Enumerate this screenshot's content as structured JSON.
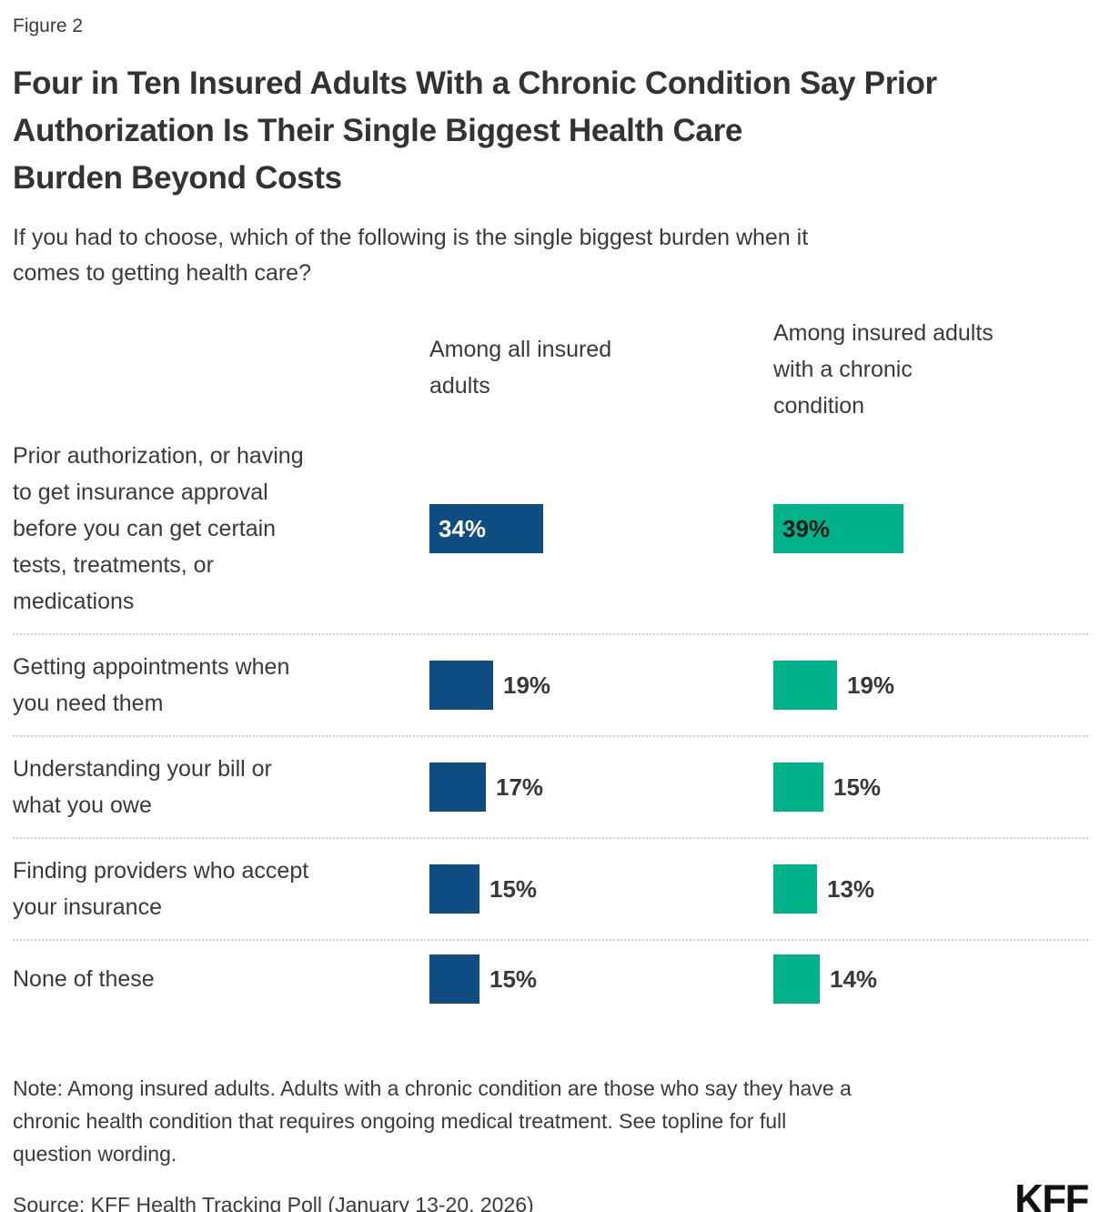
{
  "figure_label": "Figure 2",
  "title": "Four in Ten Insured Adults With a Chronic Condition Say Prior\nAuthorization Is Their Single Biggest Health Care\nBurden Beyond Costs",
  "subtitle": "If you had to choose, which of the following is the single biggest burden when it\ncomes to getting health care?",
  "columns": [
    {
      "label": "Among all insured\nadults"
    },
    {
      "label": "Among insured adults\nwith a chronic\ncondition"
    }
  ],
  "chart_data": {
    "type": "bar",
    "orientation": "horizontal",
    "title": "Four in Ten Insured Adults With a Chronic Condition Say Prior Authorization Is Their Single Biggest Health Care Burden Beyond Costs",
    "subtitle": "If you had to choose, which of the following is the single biggest burden when it comes to getting health care?",
    "categories": [
      "Prior authorization, or having\nto get insurance approval\nbefore you can get certain\ntests, treatments, or\nmedications",
      "Getting appointments when\nyou need them",
      "Understanding your bill or\nwhat you owe",
      "Finding providers who accept\nyour insurance",
      "None of these"
    ],
    "series": [
      {
        "name": "Among all insured adults",
        "color": "#0F4C81",
        "values": [
          34,
          19,
          17,
          15,
          15
        ]
      },
      {
        "name": "Among insured adults with a chronic condition",
        "color": "#00B289",
        "values": [
          39,
          19,
          15,
          13,
          14
        ]
      }
    ],
    "value_suffix": "%",
    "value_labels": true,
    "inside_label_threshold": 30,
    "axes_visible": false,
    "gridlines": false,
    "legend_position": "column-headers",
    "separator_style": "dotted"
  },
  "note": "Note: Among insured adults. Adults with a chronic condition are those who say they have a\nchronic health condition that requires ongoing medical treatment. See topline for full\nquestion wording.",
  "source": "Source: KFF Health Tracking Poll (January 13-20, 2026)",
  "logo": "KFF"
}
